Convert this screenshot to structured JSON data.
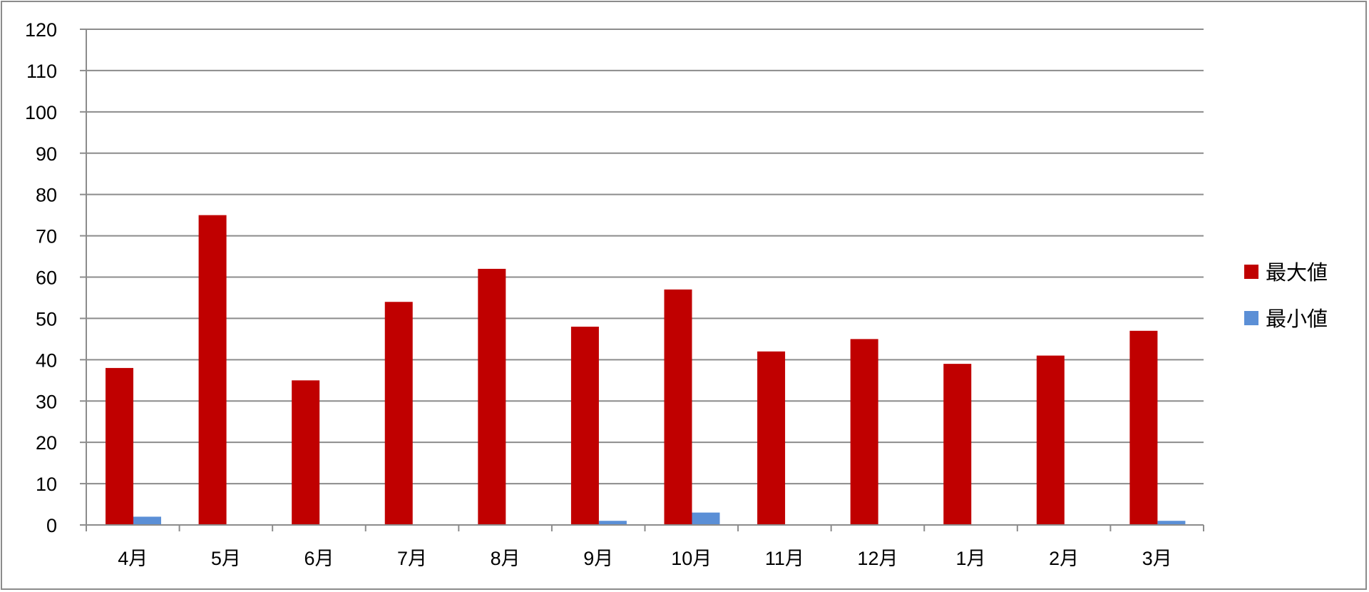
{
  "chart_data": {
    "type": "bar",
    "title": "",
    "xlabel": "",
    "ylabel": "",
    "categories": [
      "4月",
      "5月",
      "6月",
      "7月",
      "8月",
      "9月",
      "10月",
      "11月",
      "12月",
      "1月",
      "2月",
      "3月"
    ],
    "series": [
      {
        "name": "最大値",
        "color": "#c00000",
        "values": [
          38,
          75,
          35,
          54,
          62,
          48,
          57,
          42,
          45,
          39,
          41,
          47
        ]
      },
      {
        "name": "最小値",
        "color": "#5b8fd6",
        "values": [
          2,
          0,
          0,
          0,
          0,
          1,
          3,
          0,
          0,
          0,
          0,
          1
        ]
      }
    ],
    "ylim": [
      0,
      120
    ],
    "yticks": [
      0,
      10,
      20,
      30,
      40,
      50,
      60,
      70,
      80,
      90,
      100,
      110,
      120
    ],
    "grid": true,
    "legend_position": "right"
  }
}
